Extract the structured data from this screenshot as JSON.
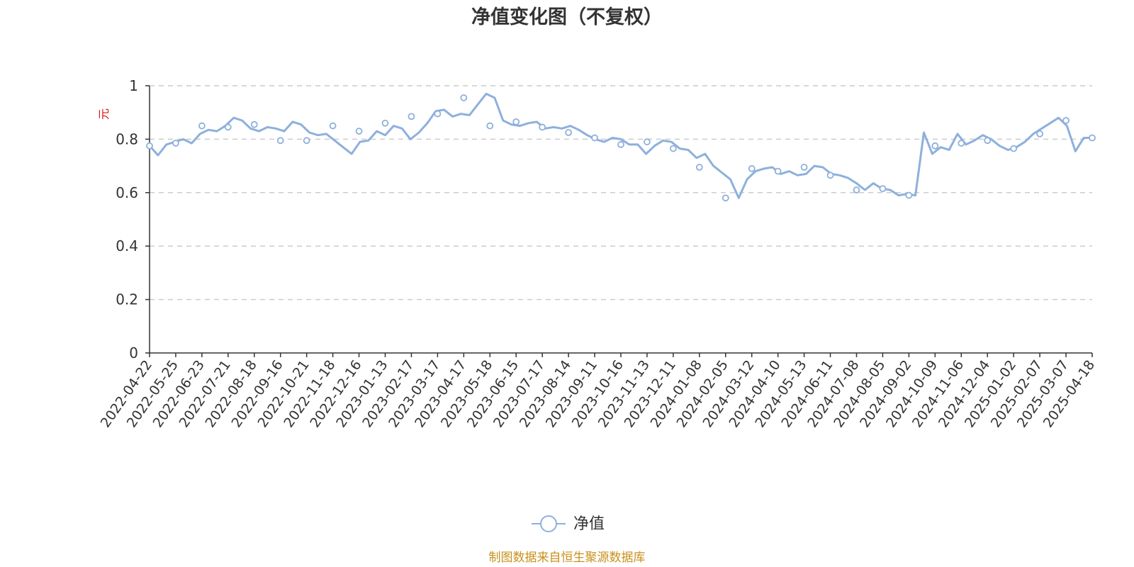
{
  "chart_data": {
    "type": "line",
    "title": "净值变化图（不复权）",
    "ylabel": "元",
    "xlabel": "",
    "ylim": [
      0,
      1
    ],
    "yticks": [
      "0",
      "0.2",
      "0.4",
      "0.6",
      "0.8",
      "1"
    ],
    "ytick_values": [
      0,
      0.2,
      0.4,
      0.6,
      0.8,
      1
    ],
    "grid": true,
    "legend_position": "bottom",
    "source_note": "制图数据来自恒生聚源数据库",
    "line_color": "#8eb0dc",
    "categories": [
      "2022-04-22",
      "2022-05-25",
      "2022-06-23",
      "2022-07-21",
      "2022-08-18",
      "2022-09-16",
      "2022-10-21",
      "2022-11-18",
      "2022-12-16",
      "2023-01-13",
      "2023-02-17",
      "2023-03-17",
      "2023-04-17",
      "2023-05-18",
      "2023-06-15",
      "2023-07-17",
      "2023-08-14",
      "2023-09-11",
      "2023-10-16",
      "2023-11-13",
      "2023-12-11",
      "2024-01-08",
      "2024-02-05",
      "2024-03-12",
      "2024-04-10",
      "2024-05-13",
      "2024-06-11",
      "2024-07-08",
      "2024-08-05",
      "2024-09-02",
      "2024-10-09",
      "2024-11-06",
      "2024-12-04",
      "2025-01-02",
      "2025-02-07",
      "2025-03-07",
      "2025-04-18"
    ],
    "series": [
      {
        "name": "净值",
        "values": [
          0.775,
          0.785,
          0.85,
          0.845,
          0.855,
          0.795,
          0.795,
          0.85,
          0.83,
          0.86,
          0.885,
          0.895,
          0.955,
          0.85,
          0.865,
          0.845,
          0.825,
          0.805,
          0.78,
          0.79,
          0.765,
          0.695,
          0.58,
          0.69,
          0.68,
          0.695,
          0.665,
          0.61,
          0.615,
          0.59,
          0.775,
          0.785,
          0.795,
          0.765,
          0.82,
          0.87,
          0.805
        ],
        "detail": [
          0.775,
          0.74,
          0.78,
          0.79,
          0.8,
          0.785,
          0.82,
          0.835,
          0.83,
          0.85,
          0.88,
          0.87,
          0.84,
          0.83,
          0.845,
          0.84,
          0.83,
          0.865,
          0.855,
          0.825,
          0.815,
          0.82,
          0.795,
          0.77,
          0.745,
          0.79,
          0.795,
          0.83,
          0.815,
          0.85,
          0.84,
          0.8,
          0.825,
          0.86,
          0.905,
          0.91,
          0.885,
          0.895,
          0.89,
          0.93,
          0.97,
          0.955,
          0.87,
          0.855,
          0.85,
          0.86,
          0.865,
          0.84,
          0.845,
          0.84,
          0.85,
          0.835,
          0.815,
          0.8,
          0.79,
          0.805,
          0.8,
          0.78,
          0.78,
          0.745,
          0.775,
          0.795,
          0.79,
          0.765,
          0.76,
          0.73,
          0.745,
          0.7,
          0.675,
          0.65,
          0.58,
          0.65,
          0.68,
          0.69,
          0.695,
          0.67,
          0.68,
          0.665,
          0.67,
          0.7,
          0.695,
          0.67,
          0.665,
          0.655,
          0.635,
          0.61,
          0.635,
          0.615,
          0.61,
          0.59,
          0.595,
          0.59,
          0.825,
          0.745,
          0.77,
          0.76,
          0.82,
          0.78,
          0.795,
          0.815,
          0.8,
          0.775,
          0.76,
          0.77,
          0.79,
          0.82,
          0.84,
          0.86,
          0.88,
          0.85,
          0.755,
          0.805,
          0.805
        ]
      }
    ]
  }
}
